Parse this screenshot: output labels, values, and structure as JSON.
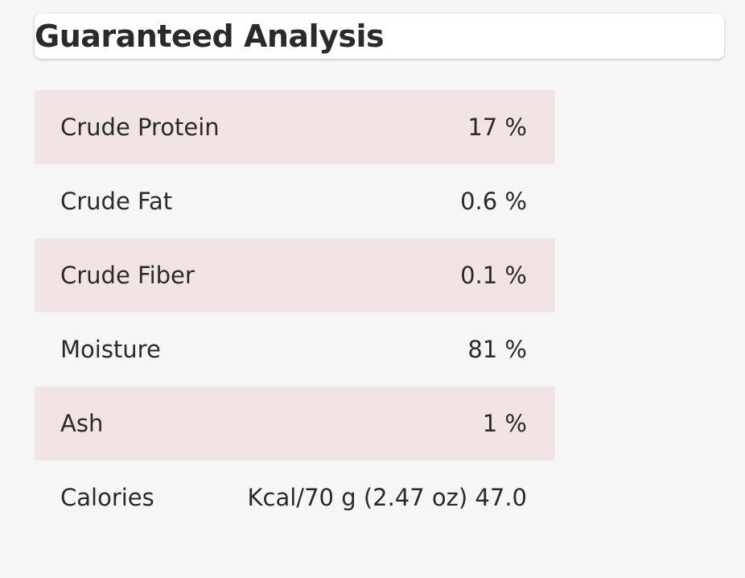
{
  "header": {
    "title": "Guaranteed Analysis"
  },
  "analysis": {
    "rows": [
      {
        "label": "Crude Protein",
        "value": "17 %"
      },
      {
        "label": "Crude Fat",
        "value": "0.6 %"
      },
      {
        "label": "Crude Fiber",
        "value": "0.1 %"
      },
      {
        "label": "Moisture",
        "value": "81 %"
      },
      {
        "label": "Ash",
        "value": "1 %"
      },
      {
        "label": "Calories",
        "value": "Kcal/70 g (2.47 oz) 47.0"
      }
    ]
  },
  "colors": {
    "page_background": "#f6f6f6",
    "shaded_row": "#f2e4e4",
    "card_background": "#ffffff",
    "text": "#2a2a2a"
  }
}
